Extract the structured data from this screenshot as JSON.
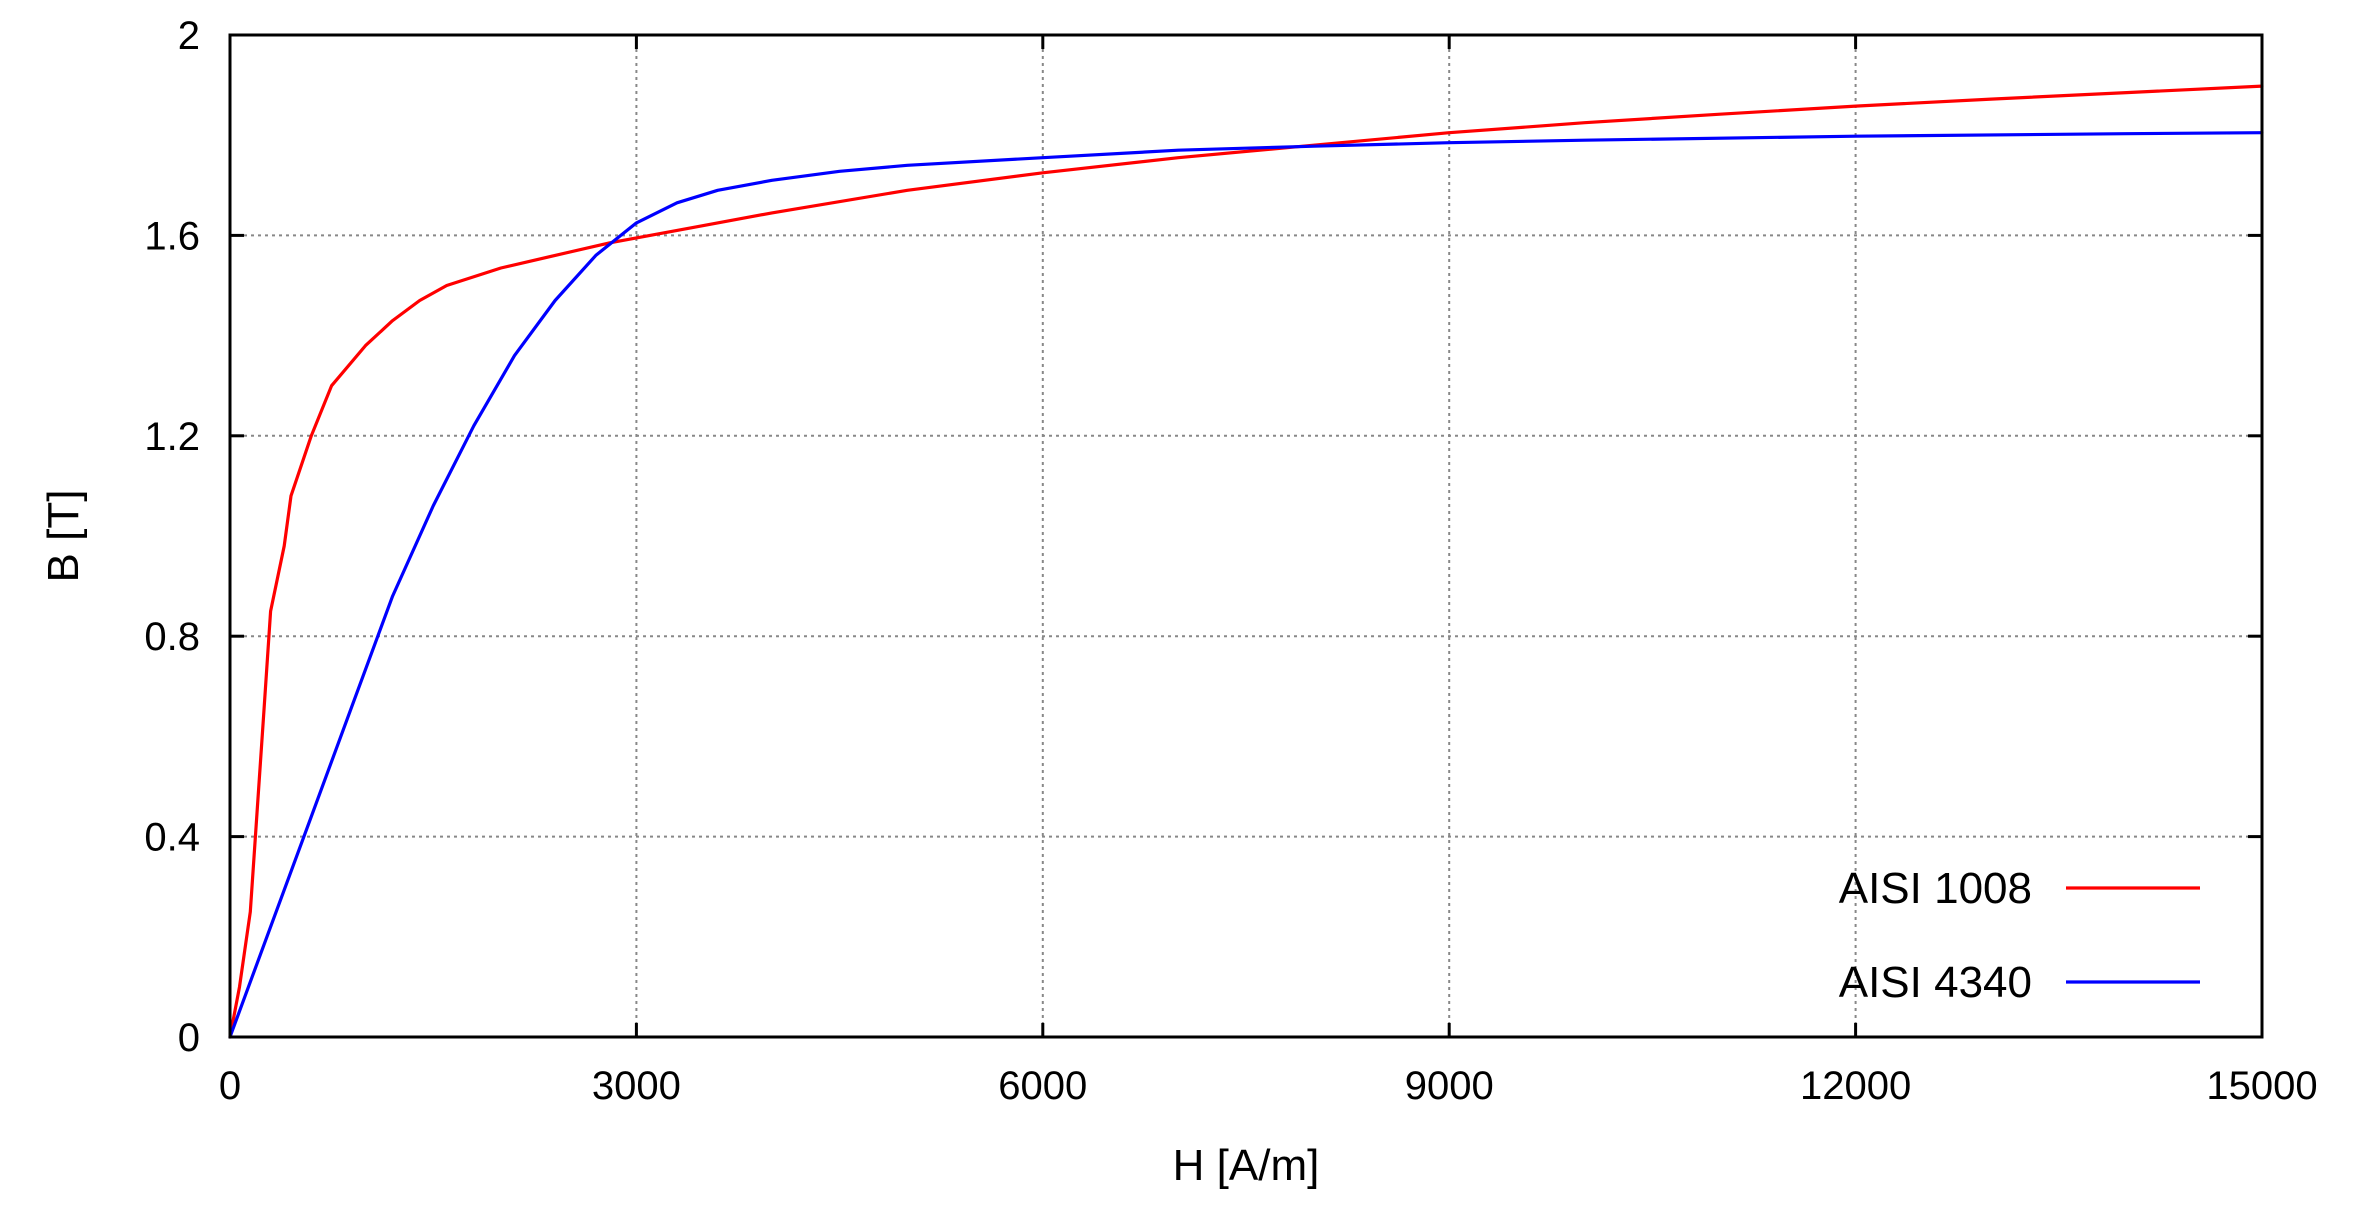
{
  "chart_data": {
    "type": "line",
    "title": "",
    "xlabel": "H [A/m]",
    "ylabel": "B [T]",
    "xlim": [
      0,
      15000
    ],
    "ylim": [
      0,
      2
    ],
    "x_ticks": [
      0,
      3000,
      6000,
      9000,
      12000,
      15000
    ],
    "y_ticks": [
      0,
      0.4,
      0.8,
      1.2,
      1.6,
      2
    ],
    "x_tick_labels": [
      "0",
      "3000",
      "6000",
      "9000",
      "12000",
      "15000"
    ],
    "y_tick_labels": [
      "0",
      "0.4",
      "0.8",
      "1.2",
      "1.6",
      "2"
    ],
    "grid": true,
    "legend_position": "bottom-right",
    "series": [
      {
        "name": "AISI 1008",
        "color": "#ff0000",
        "points": [
          [
            0,
            0
          ],
          [
            70,
            0.1
          ],
          [
            150,
            0.25
          ],
          [
            200,
            0.45
          ],
          [
            250,
            0.65
          ],
          [
            300,
            0.85
          ],
          [
            400,
            0.98
          ],
          [
            450,
            1.08
          ],
          [
            600,
            1.2
          ],
          [
            750,
            1.3
          ],
          [
            1000,
            1.38
          ],
          [
            1200,
            1.43
          ],
          [
            1400,
            1.47
          ],
          [
            1600,
            1.5
          ],
          [
            2000,
            1.535
          ],
          [
            2400,
            1.56
          ],
          [
            2800,
            1.585
          ],
          [
            3000,
            1.595
          ],
          [
            3500,
            1.62
          ],
          [
            4000,
            1.645
          ],
          [
            5000,
            1.69
          ],
          [
            6000,
            1.725
          ],
          [
            7000,
            1.755
          ],
          [
            8000,
            1.78
          ],
          [
            9000,
            1.805
          ],
          [
            10000,
            1.825
          ],
          [
            11000,
            1.842
          ],
          [
            12000,
            1.858
          ],
          [
            13000,
            1.872
          ],
          [
            14000,
            1.885
          ],
          [
            15000,
            1.898
          ]
        ]
      },
      {
        "name": "AISI 4340",
        "color": "#0000ff",
        "points": [
          [
            0,
            0
          ],
          [
            300,
            0.22
          ],
          [
            600,
            0.44
          ],
          [
            900,
            0.66
          ],
          [
            1200,
            0.88
          ],
          [
            1500,
            1.06
          ],
          [
            1800,
            1.22
          ],
          [
            2100,
            1.36
          ],
          [
            2400,
            1.47
          ],
          [
            2700,
            1.56
          ],
          [
            3000,
            1.625
          ],
          [
            3300,
            1.665
          ],
          [
            3600,
            1.69
          ],
          [
            4000,
            1.71
          ],
          [
            4500,
            1.728
          ],
          [
            5000,
            1.74
          ],
          [
            6000,
            1.755
          ],
          [
            7000,
            1.77
          ],
          [
            8000,
            1.778
          ],
          [
            9000,
            1.785
          ],
          [
            10000,
            1.79
          ],
          [
            12000,
            1.798
          ],
          [
            14000,
            1.803
          ],
          [
            15000,
            1.805
          ]
        ]
      }
    ]
  }
}
